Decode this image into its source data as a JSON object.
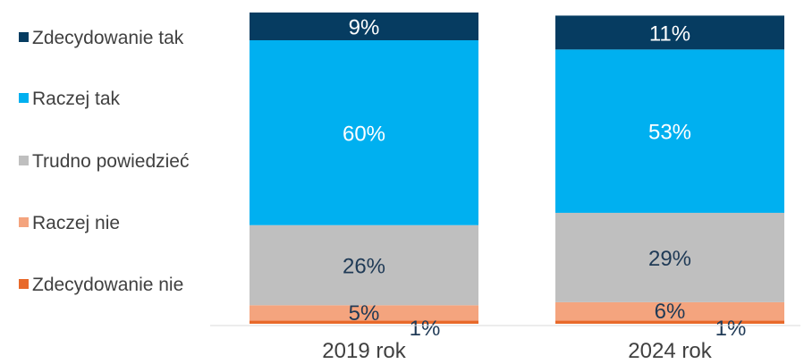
{
  "chart_data": {
    "type": "bar",
    "stacked": true,
    "normalized_percent": true,
    "categories": [
      "2019 rok",
      "2024 rok"
    ],
    "series": [
      {
        "name": "Zdecydowanie nie",
        "color": "#e8692a",
        "values": [
          1,
          1
        ],
        "labels": [
          "1%",
          "1%"
        ]
      },
      {
        "name": "Raczej nie",
        "color": "#f4a47e",
        "values": [
          5,
          6
        ],
        "labels": [
          "5%",
          "6%"
        ]
      },
      {
        "name": "Trudno powiedzieć",
        "color": "#bfbfbf",
        "values": [
          26,
          29
        ],
        "labels": [
          "26%",
          "29%"
        ]
      },
      {
        "name": "Raczej tak",
        "color": "#00b0f0",
        "values": [
          60,
          53
        ],
        "labels": [
          "60%",
          "53%"
        ]
      },
      {
        "name": "Zdecydowanie tak",
        "color": "#063c61",
        "values": [
          9,
          11
        ],
        "labels": [
          "9%",
          "11%"
        ]
      }
    ],
    "legend_order": [
      "Zdecydowanie tak",
      "Raczej tak",
      "Trudno powiedzieć",
      "Raczej nie",
      "Zdecydowanie nie"
    ],
    "legend_position": "left",
    "grid": false
  }
}
